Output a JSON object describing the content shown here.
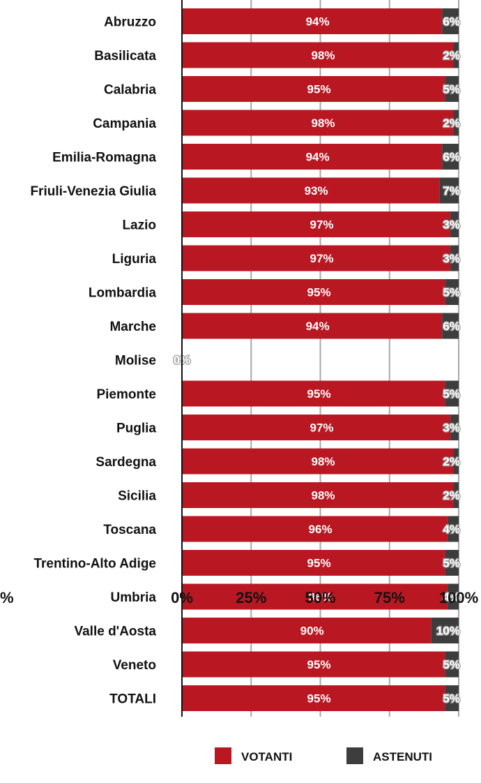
{
  "chart_data": {
    "type": "bar",
    "orientation": "horizontal",
    "stacked": true,
    "categories": [
      "Abruzzo",
      "Basilicata",
      "Calabria",
      "Campania",
      "Emilia-Romagna",
      "Friuli-Venezia Giulia",
      "Lazio",
      "Liguria",
      "Lombardia",
      "Marche",
      "Molise",
      "Piemonte",
      "Puglia",
      "Sardegna",
      "Sicilia",
      "Toscana",
      "Trentino-Alto Adige",
      "Umbria",
      "Valle d'Aosta",
      "Veneto",
      "TOTALI"
    ],
    "series": [
      {
        "name": "VOTANTI",
        "color": "#b91823",
        "values": [
          94,
          98,
          95,
          98,
          94,
          93,
          97,
          97,
          95,
          94,
          0,
          95,
          97,
          98,
          98,
          96,
          95,
          96,
          90,
          95,
          95
        ],
        "labels": [
          "94%",
          "98%",
          "95%",
          "98%",
          "94%",
          "93%",
          "97%",
          "97%",
          "95%",
          "94%",
          "0%",
          "95%",
          "97%",
          "98%",
          "98%",
          "96%",
          "95%",
          "96%",
          "90%",
          "95%",
          "95%"
        ]
      },
      {
        "name": "ASTENUTI",
        "color": "#3d3d3d",
        "values": [
          6,
          2,
          5,
          2,
          6,
          7,
          3,
          3,
          5,
          6,
          0,
          5,
          3,
          2,
          2,
          4,
          5,
          4,
          10,
          5,
          5
        ],
        "labels": [
          "6%",
          "2%",
          "5%",
          "2%",
          "6%",
          "7%",
          "3%",
          "3%",
          "5%",
          "6%",
          "",
          "5%",
          "3%",
          "2%",
          "2%",
          "4%",
          "5%",
          "4%",
          "10%",
          "5%",
          "5%"
        ]
      }
    ],
    "xlim": [
      0,
      100
    ],
    "xticks": [
      0,
      25,
      50,
      75,
      100
    ],
    "xtick_labels": [
      "0%",
      "25%",
      "50%",
      "75%",
      "100%"
    ],
    "grid": true,
    "legend": {
      "position": "bottom",
      "items": [
        "VOTANTI",
        "ASTENUTI"
      ]
    },
    "title": "",
    "xlabel": "",
    "ylabel": ""
  },
  "edge_fragments": {
    "left_bottom": "%"
  }
}
